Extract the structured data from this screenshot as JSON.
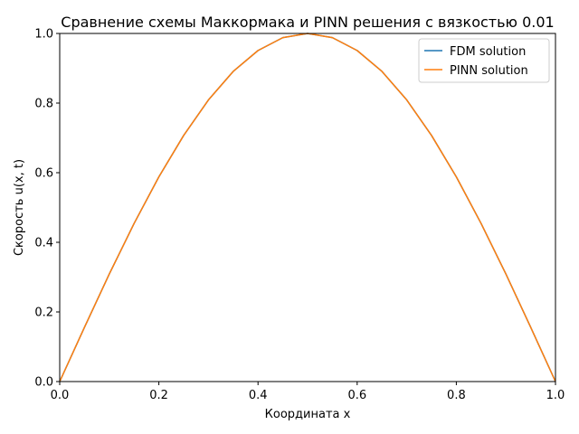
{
  "chart_data": {
    "type": "line",
    "title": "Сравнение схемы Маккормака и PINN решения с вязкостью 0.01",
    "xlabel": "Координата x",
    "ylabel": "Скорость u(x, t)",
    "xlim": [
      0.0,
      1.0
    ],
    "ylim": [
      0.0,
      1.0
    ],
    "xticks": [
      "0.0",
      "0.2",
      "0.4",
      "0.6",
      "0.8",
      "1.0"
    ],
    "yticks": [
      "0.0",
      "0.2",
      "0.4",
      "0.6",
      "0.8",
      "1.0"
    ],
    "grid": false,
    "legend_position": "top-right",
    "x": [
      0.0,
      0.05,
      0.1,
      0.15,
      0.2,
      0.25,
      0.3,
      0.35,
      0.4,
      0.45,
      0.5,
      0.55,
      0.6,
      0.65,
      0.7,
      0.75,
      0.8,
      0.85,
      0.9,
      0.95,
      1.0
    ],
    "series": [
      {
        "name": "FDM solution",
        "color": "#1f77b4",
        "values": [
          0.0,
          0.156,
          0.309,
          0.454,
          0.588,
          0.707,
          0.809,
          0.891,
          0.951,
          0.988,
          1.0,
          0.988,
          0.951,
          0.891,
          0.809,
          0.707,
          0.588,
          0.454,
          0.309,
          0.156,
          0.0
        ]
      },
      {
        "name": "PINN solution",
        "color": "#ff7f0e",
        "values": [
          0.0,
          0.156,
          0.309,
          0.454,
          0.588,
          0.707,
          0.809,
          0.891,
          0.951,
          0.988,
          1.0,
          0.988,
          0.951,
          0.891,
          0.809,
          0.707,
          0.588,
          0.454,
          0.309,
          0.156,
          0.0
        ]
      }
    ]
  }
}
